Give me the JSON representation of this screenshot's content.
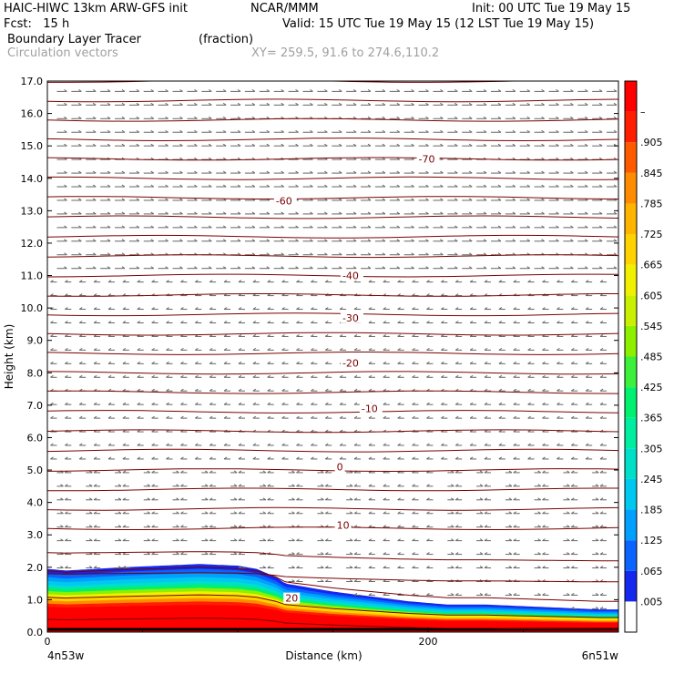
{
  "header": {
    "model": "HAIC-HIWC 13km ARW-GFS init",
    "org": "NCAR/MMM",
    "init": "Init: 00 UTC Tue 19 May 15",
    "fcst": "Fcst:   15 h",
    "valid": "Valid: 15 UTC Tue 19 May 15 (12 LST Tue 19 May 15)",
    "field": "Boundary Layer Tracer",
    "field_units": "(fraction)",
    "vectors": "Circulation vectors",
    "xy": "XY= 259.5, 91.6 to 274.6,110.2"
  },
  "colorbar": {
    "labels": [
      ".005",
      ".065",
      ".125",
      ".185",
      ".245",
      ".305",
      ".365",
      ".425",
      ".485",
      ".545",
      ".605",
      ".665",
      ".725",
      ".785",
      ".845",
      ".905",
      "–"
    ],
    "colors": [
      "#ffffff",
      "#1428f0",
      "#0a64ff",
      "#00a0ff",
      "#00c8f0",
      "#00e0c8",
      "#00eea0",
      "#00f070",
      "#3cf03c",
      "#8cf000",
      "#c8f000",
      "#f0f000",
      "#ffd200",
      "#ffb400",
      "#ff8c00",
      "#ff5a00",
      "#ff1e00",
      "#ff0000"
    ]
  },
  "chart_data": {
    "type": "heatmap",
    "title": "Boundary Layer Tracer",
    "units": "fraction",
    "xlabel": "Distance (km)",
    "ylabel": "Height (km)",
    "xlim": [
      0,
      300
    ],
    "ylim": [
      0,
      17
    ],
    "x_ticks": [
      "0",
      "200"
    ],
    "x_end_labels": {
      "left": "4n53w",
      "right": "6n51w"
    },
    "y_ticks": [
      "0.0",
      "1.0",
      "2.0",
      "3.0",
      "4.0",
      "5.0",
      "6.0",
      "7.0",
      "8.0",
      "9.0",
      "10.0",
      "11.0",
      "12.0",
      "13.0",
      "14.0",
      "15.0",
      "16.0",
      "17.0"
    ],
    "tracer_top": {
      "x": [
        0,
        10,
        25,
        40,
        60,
        80,
        100,
        110,
        120,
        125,
        135,
        150,
        170,
        190,
        210,
        230,
        250,
        270,
        290,
        300
      ],
      "height_km": [
        1.95,
        1.9,
        1.95,
        2.0,
        2.05,
        2.1,
        2.05,
        1.95,
        1.7,
        1.5,
        1.4,
        1.25,
        1.1,
        0.95,
        0.85,
        0.85,
        0.8,
        0.75,
        0.7,
        0.7
      ]
    },
    "contour_labels": [
      {
        "text": "-70",
        "x": 195,
        "y": 14.6
      },
      {
        "text": "-60",
        "x": 120,
        "y": 13.3
      },
      {
        "text": "-40",
        "x": 155,
        "y": 11.0
      },
      {
        "text": "-30",
        "x": 155,
        "y": 9.7
      },
      {
        "text": "-20",
        "x": 155,
        "y": 8.3
      },
      {
        "text": "-10",
        "x": 165,
        "y": 6.9
      },
      {
        "text": "0",
        "x": 152,
        "y": 5.1
      },
      {
        "text": "10",
        "x": 152,
        "y": 3.3
      },
      {
        "text": "20",
        "x": 125,
        "y": 1.05
      }
    ]
  }
}
